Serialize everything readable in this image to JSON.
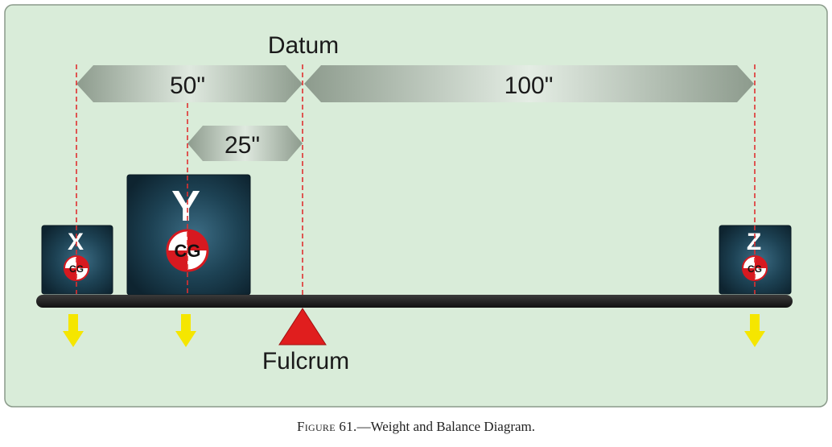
{
  "diagram": {
    "datum_label": "Datum",
    "fulcrum_label": "Fulcrum",
    "dimensions": {
      "x_to_datum": "50\"",
      "datum_to_z": "100\"",
      "y_to_datum": "25\""
    },
    "weights": [
      {
        "label": "X",
        "cg_label": "CG"
      },
      {
        "label": "Y",
        "cg_label": "CG"
      },
      {
        "label": "Z",
        "cg_label": "CG"
      }
    ]
  },
  "caption": {
    "figure": "Figure 61.",
    "text": "—Weight and Balance Diagram."
  },
  "colors": {
    "background": "#d9ecd9",
    "panel_border": "#7f8f7f",
    "box": "#1a3b4c",
    "box_highlight": "#3a6a82",
    "beam": "#1e1e1e",
    "fulcrum": "#e02020",
    "arrow": "#f5e600",
    "dashed_line": "#e03030",
    "dim_arrow": "#9aa89a",
    "cg_red": "#d71920"
  }
}
